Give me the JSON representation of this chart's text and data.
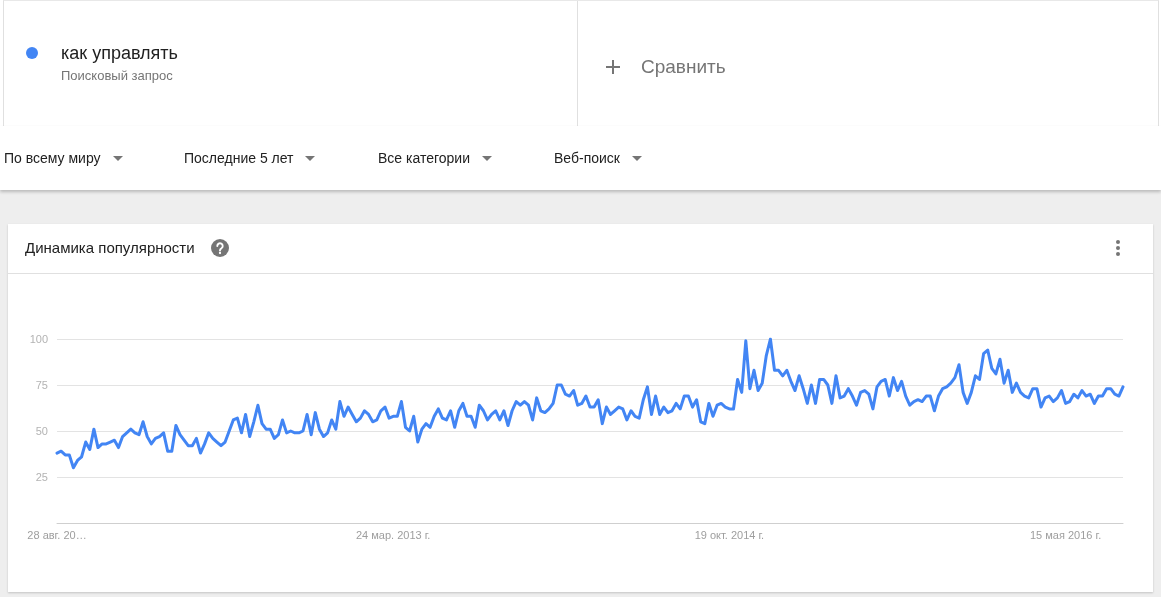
{
  "chart_data": {
    "type": "line",
    "title": "Динамика популярности",
    "legend": "top left",
    "grid": "y",
    "marker": "none",
    "line_style": "solid",
    "annotations": [
      "Поисковый запрос",
      "Сравнить",
      "По всему миру",
      "Последние 5 лет",
      "Все категории",
      "Веб-поиск"
    ],
    "xlim": [
      "2011-08-28",
      "2016-08-21"
    ],
    "xticks": [
      {
        "value": "2011-08-28",
        "label": "28 авг. 20…"
      },
      {
        "value": "2013-03-24",
        "label": "24 мар. 2013 г."
      },
      {
        "value": "2014-10-19",
        "label": "19 окт. 2014 г."
      },
      {
        "value": "2016-05-15",
        "label": "15 мая 2016 г."
      }
    ],
    "ylim": [
      0,
      100
    ],
    "yticks": [
      25,
      50,
      75,
      100
    ],
    "x": [
      "2011-08-28",
      "2011-09-04",
      "2011-09-11",
      "2011-09-18",
      "2011-09-25",
      "2011-10-02",
      "2011-10-09",
      "2011-10-16",
      "2011-10-23",
      "2011-10-30",
      "2011-11-06",
      "2011-11-13",
      "2011-11-20",
      "2011-11-27",
      "2011-12-04",
      "2011-12-11",
      "2011-12-18",
      "2011-12-25",
      "2012-01-01",
      "2012-01-08",
      "2012-01-15",
      "2012-01-22",
      "2012-01-29",
      "2012-02-05",
      "2012-02-12",
      "2012-02-19",
      "2012-02-26",
      "2012-03-04",
      "2012-03-11",
      "2012-03-18",
      "2012-03-25",
      "2012-04-01",
      "2012-04-08",
      "2012-04-15",
      "2012-04-22",
      "2012-04-29",
      "2012-05-06",
      "2012-05-13",
      "2012-05-20",
      "2012-05-27",
      "2012-06-03",
      "2012-06-10",
      "2012-06-17",
      "2012-06-24",
      "2012-07-01",
      "2012-07-08",
      "2012-07-15",
      "2012-07-22",
      "2012-07-29",
      "2012-08-05",
      "2012-08-12",
      "2012-08-19",
      "2012-08-26",
      "2012-09-02",
      "2012-09-09",
      "2012-09-16",
      "2012-09-23",
      "2012-09-30",
      "2012-10-07",
      "2012-10-14",
      "2012-10-21",
      "2012-10-28",
      "2012-11-04",
      "2012-11-11",
      "2012-11-18",
      "2012-11-25",
      "2012-12-02",
      "2012-12-09",
      "2012-12-16",
      "2012-12-23",
      "2012-12-30",
      "2013-01-06",
      "2013-01-13",
      "2013-01-20",
      "2013-01-27",
      "2013-02-03",
      "2013-02-10",
      "2013-02-17",
      "2013-02-24",
      "2013-03-03",
      "2013-03-10",
      "2013-03-17",
      "2013-03-24",
      "2013-03-31",
      "2013-04-07",
      "2013-04-14",
      "2013-04-21",
      "2013-04-28",
      "2013-05-05",
      "2013-05-12",
      "2013-05-19",
      "2013-05-26",
      "2013-06-02",
      "2013-06-09",
      "2013-06-16",
      "2013-06-23",
      "2013-06-30",
      "2013-07-07",
      "2013-07-14",
      "2013-07-21",
      "2013-07-28",
      "2013-08-04",
      "2013-08-11",
      "2013-08-18",
      "2013-08-25",
      "2013-09-01",
      "2013-09-08",
      "2013-09-15",
      "2013-09-22",
      "2013-09-29",
      "2013-10-06",
      "2013-10-13",
      "2013-10-20",
      "2013-10-27",
      "2013-11-03",
      "2013-11-10",
      "2013-11-17",
      "2013-11-24",
      "2013-12-01",
      "2013-12-08",
      "2013-12-15",
      "2013-12-22",
      "2013-12-29",
      "2014-01-05",
      "2014-01-12",
      "2014-01-19",
      "2014-01-26",
      "2014-02-02",
      "2014-02-09",
      "2014-02-16",
      "2014-02-23",
      "2014-03-02",
      "2014-03-09",
      "2014-03-16",
      "2014-03-23",
      "2014-03-30",
      "2014-04-06",
      "2014-04-13",
      "2014-04-20",
      "2014-04-27",
      "2014-05-04",
      "2014-05-11",
      "2014-05-18",
      "2014-05-25",
      "2014-06-01",
      "2014-06-08",
      "2014-06-15",
      "2014-06-22",
      "2014-06-29",
      "2014-07-06",
      "2014-07-13",
      "2014-07-20",
      "2014-07-27",
      "2014-08-03",
      "2014-08-10",
      "2014-08-17",
      "2014-08-24",
      "2014-08-31",
      "2014-09-07",
      "2014-09-14",
      "2014-09-21",
      "2014-09-28",
      "2014-10-05",
      "2014-10-12",
      "2014-10-19",
      "2014-10-26",
      "2014-11-02",
      "2014-11-09",
      "2014-11-16",
      "2014-11-23",
      "2014-11-30",
      "2014-12-07",
      "2014-12-14",
      "2014-12-21",
      "2014-12-28",
      "2015-01-04",
      "2015-01-11",
      "2015-01-18",
      "2015-01-25",
      "2015-02-01",
      "2015-02-08",
      "2015-02-15",
      "2015-02-22",
      "2015-03-01",
      "2015-03-08",
      "2015-03-15",
      "2015-03-22",
      "2015-03-29",
      "2015-04-05",
      "2015-04-12",
      "2015-04-19",
      "2015-04-26",
      "2015-05-03",
      "2015-05-10",
      "2015-05-17",
      "2015-05-24",
      "2015-05-31",
      "2015-06-07",
      "2015-06-14",
      "2015-06-21",
      "2015-06-28",
      "2015-07-05",
      "2015-07-12",
      "2015-07-19",
      "2015-07-26",
      "2015-08-02",
      "2015-08-09",
      "2015-08-16",
      "2015-08-23",
      "2015-08-30",
      "2015-09-06",
      "2015-09-13",
      "2015-09-20",
      "2015-09-27",
      "2015-10-04",
      "2015-10-11",
      "2015-10-18",
      "2015-10-25",
      "2015-11-01",
      "2015-11-08",
      "2015-11-15",
      "2015-11-22",
      "2015-11-29",
      "2015-12-06",
      "2015-12-13",
      "2015-12-20",
      "2015-12-27",
      "2016-01-03",
      "2016-01-10",
      "2016-01-17",
      "2016-01-24",
      "2016-01-31",
      "2016-02-07",
      "2016-02-14",
      "2016-02-21",
      "2016-02-28",
      "2016-03-06",
      "2016-03-13",
      "2016-03-20",
      "2016-03-27",
      "2016-04-03",
      "2016-04-10",
      "2016-04-17",
      "2016-04-24",
      "2016-05-01",
      "2016-05-08",
      "2016-05-15",
      "2016-05-22",
      "2016-05-29",
      "2016-06-05",
      "2016-06-12",
      "2016-06-19",
      "2016-06-26",
      "2016-07-03",
      "2016-07-10",
      "2016-07-17",
      "2016-07-24",
      "2016-07-31",
      "2016-08-07",
      "2016-08-14",
      "2016-08-21"
    ],
    "series": [
      {
        "name": "как управлять",
        "color": "#4285f4",
        "values": [
          38,
          39,
          37,
          37,
          30,
          34,
          36,
          44,
          40,
          51,
          41,
          43,
          43,
          44,
          45,
          41,
          47,
          49,
          51,
          49,
          48,
          55,
          47,
          43,
          46,
          47,
          49,
          39,
          39,
          53,
          48,
          45,
          42,
          42,
          46,
          38,
          43,
          49,
          46,
          44,
          42,
          44,
          50,
          56,
          57,
          49,
          59,
          47,
          55,
          64,
          54,
          51,
          51,
          46,
          48,
          56,
          49,
          50,
          49,
          49,
          50,
          59,
          48,
          60,
          51,
          47,
          49,
          56,
          51,
          66,
          58,
          63,
          59,
          55,
          57,
          61,
          59,
          55,
          56,
          61,
          63,
          57,
          58,
          58,
          66,
          52,
          50,
          58,
          44,
          51,
          54,
          52,
          58,
          62,
          57,
          56,
          61,
          52,
          61,
          65,
          58,
          58,
          52,
          64,
          61,
          56,
          59,
          61,
          56,
          61,
          53,
          61,
          66,
          64,
          66,
          64,
          56,
          68,
          61,
          60,
          62,
          65,
          75,
          75,
          70,
          69,
          72,
          64,
          65,
          69,
          63,
          63,
          67,
          54,
          63,
          59,
          61,
          63,
          62,
          56,
          61,
          58,
          57,
          67,
          74,
          59,
          69,
          59,
          63,
          60,
          61,
          65,
          62,
          69,
          69,
          63,
          67,
          55,
          54,
          65,
          58,
          64,
          65,
          63,
          62,
          62,
          78,
          71,
          99,
          73,
          83,
          72,
          76,
          91,
          100,
          83,
          83,
          80,
          83,
          77,
          72,
          80,
          73,
          65,
          75,
          65,
          78,
          78,
          75,
          65,
          80,
          68,
          69,
          73,
          69,
          64,
          71,
          72,
          70,
          62,
          74,
          77,
          78,
          69,
          79,
          72,
          77,
          69,
          64,
          66,
          67,
          66,
          69,
          69,
          61,
          69,
          73,
          74,
          76,
          79,
          86,
          71,
          65,
          71,
          80,
          78,
          92,
          94,
          84,
          81,
          89,
          76,
          83,
          71,
          76,
          71,
          69,
          68,
          73,
          73,
          63,
          68,
          69,
          66,
          68,
          72,
          65,
          66,
          70,
          68,
          72,
          69,
          70,
          65,
          69,
          69,
          73,
          73,
          70,
          69,
          74
        ]
      }
    ]
  }
}
